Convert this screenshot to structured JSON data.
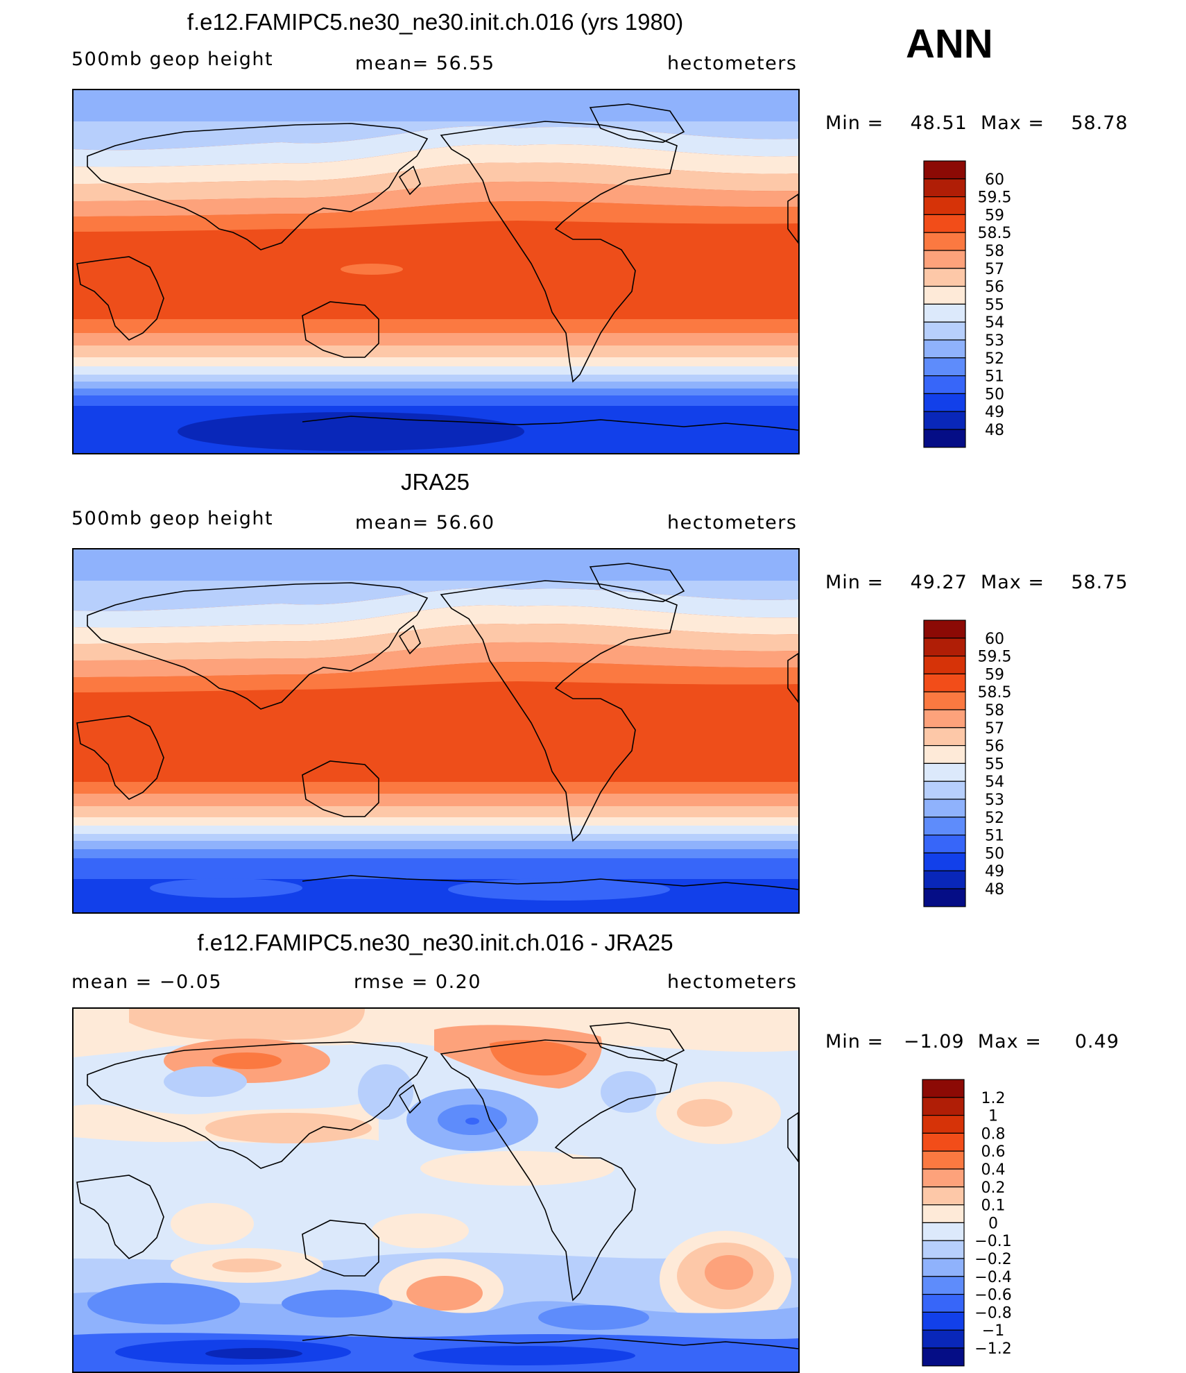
{
  "season": "ANN",
  "panels": [
    {
      "title": "f.e12.FAMIPC5.ne30_ne30.init.ch.016 (yrs 1980)",
      "left_label": "500mb  geop  height",
      "center_label": "mean=   56.55",
      "right_label": "hectometers",
      "minmax": {
        "min_label": "Min  =",
        "min": "48.51",
        "max_label": "Max  =",
        "max": "58.78"
      },
      "colorbar": {
        "colors": [
          "#8c0a05",
          "#b01e06",
          "#d63308",
          "#f24d19",
          "#fb7941",
          "#fda27b",
          "#fdc8a8",
          "#feead8",
          "#dce9fb",
          "#b7cffc",
          "#8fb2fc",
          "#5e8cfb",
          "#3766f9",
          "#1240ea",
          "#0927b9",
          "#050d86"
        ],
        "labels": [
          "60",
          "59.5",
          "59",
          "58.5",
          "58",
          "57",
          "56",
          "55",
          "54",
          "53",
          "52",
          "51",
          "50",
          "49",
          "48"
        ]
      }
    },
    {
      "title": "JRA25",
      "left_label": "500mb  geop  height",
      "center_label": "mean=   56.60",
      "right_label": "hectometers",
      "minmax": {
        "min_label": "Min  =",
        "min": "49.27",
        "max_label": "Max  =",
        "max": "58.75"
      },
      "colorbar": {
        "colors": [
          "#8c0a05",
          "#b01e06",
          "#d63308",
          "#f24d19",
          "#fb7941",
          "#fda27b",
          "#fdc8a8",
          "#feead8",
          "#dce9fb",
          "#b7cffc",
          "#8fb2fc",
          "#5e8cfb",
          "#3766f9",
          "#1240ea",
          "#0927b9",
          "#050d86"
        ],
        "labels": [
          "60",
          "59.5",
          "59",
          "58.5",
          "58",
          "57",
          "56",
          "55",
          "54",
          "53",
          "52",
          "51",
          "50",
          "49",
          "48"
        ]
      }
    },
    {
      "title": "f.e12.FAMIPC5.ne30_ne30.init.ch.016 - JRA25",
      "left_label": "mean  =    −0.05",
      "center_label": "rmse  =     0.20",
      "right_label": "hectometers",
      "minmax": {
        "min_label": "Min  =",
        "min": "−1.09",
        "max_label": "Max  =",
        "max": "0.49"
      },
      "colorbar": {
        "colors": [
          "#8c0a05",
          "#b01e06",
          "#d63308",
          "#f24d19",
          "#fb7941",
          "#fda27b",
          "#fdc8a8",
          "#feead8",
          "#dce9fb",
          "#b7cffc",
          "#8fb2fc",
          "#5e8cfb",
          "#3766f9",
          "#1240ea",
          "#0927b9",
          "#050d86"
        ],
        "labels": [
          "1.2",
          "1",
          "0.8",
          "0.6",
          "0.4",
          "0.2",
          "0.1",
          "0",
          "−0.1",
          "−0.2",
          "−0.4",
          "−0.6",
          "−0.8",
          "−1",
          "−1.2"
        ]
      }
    }
  ]
}
